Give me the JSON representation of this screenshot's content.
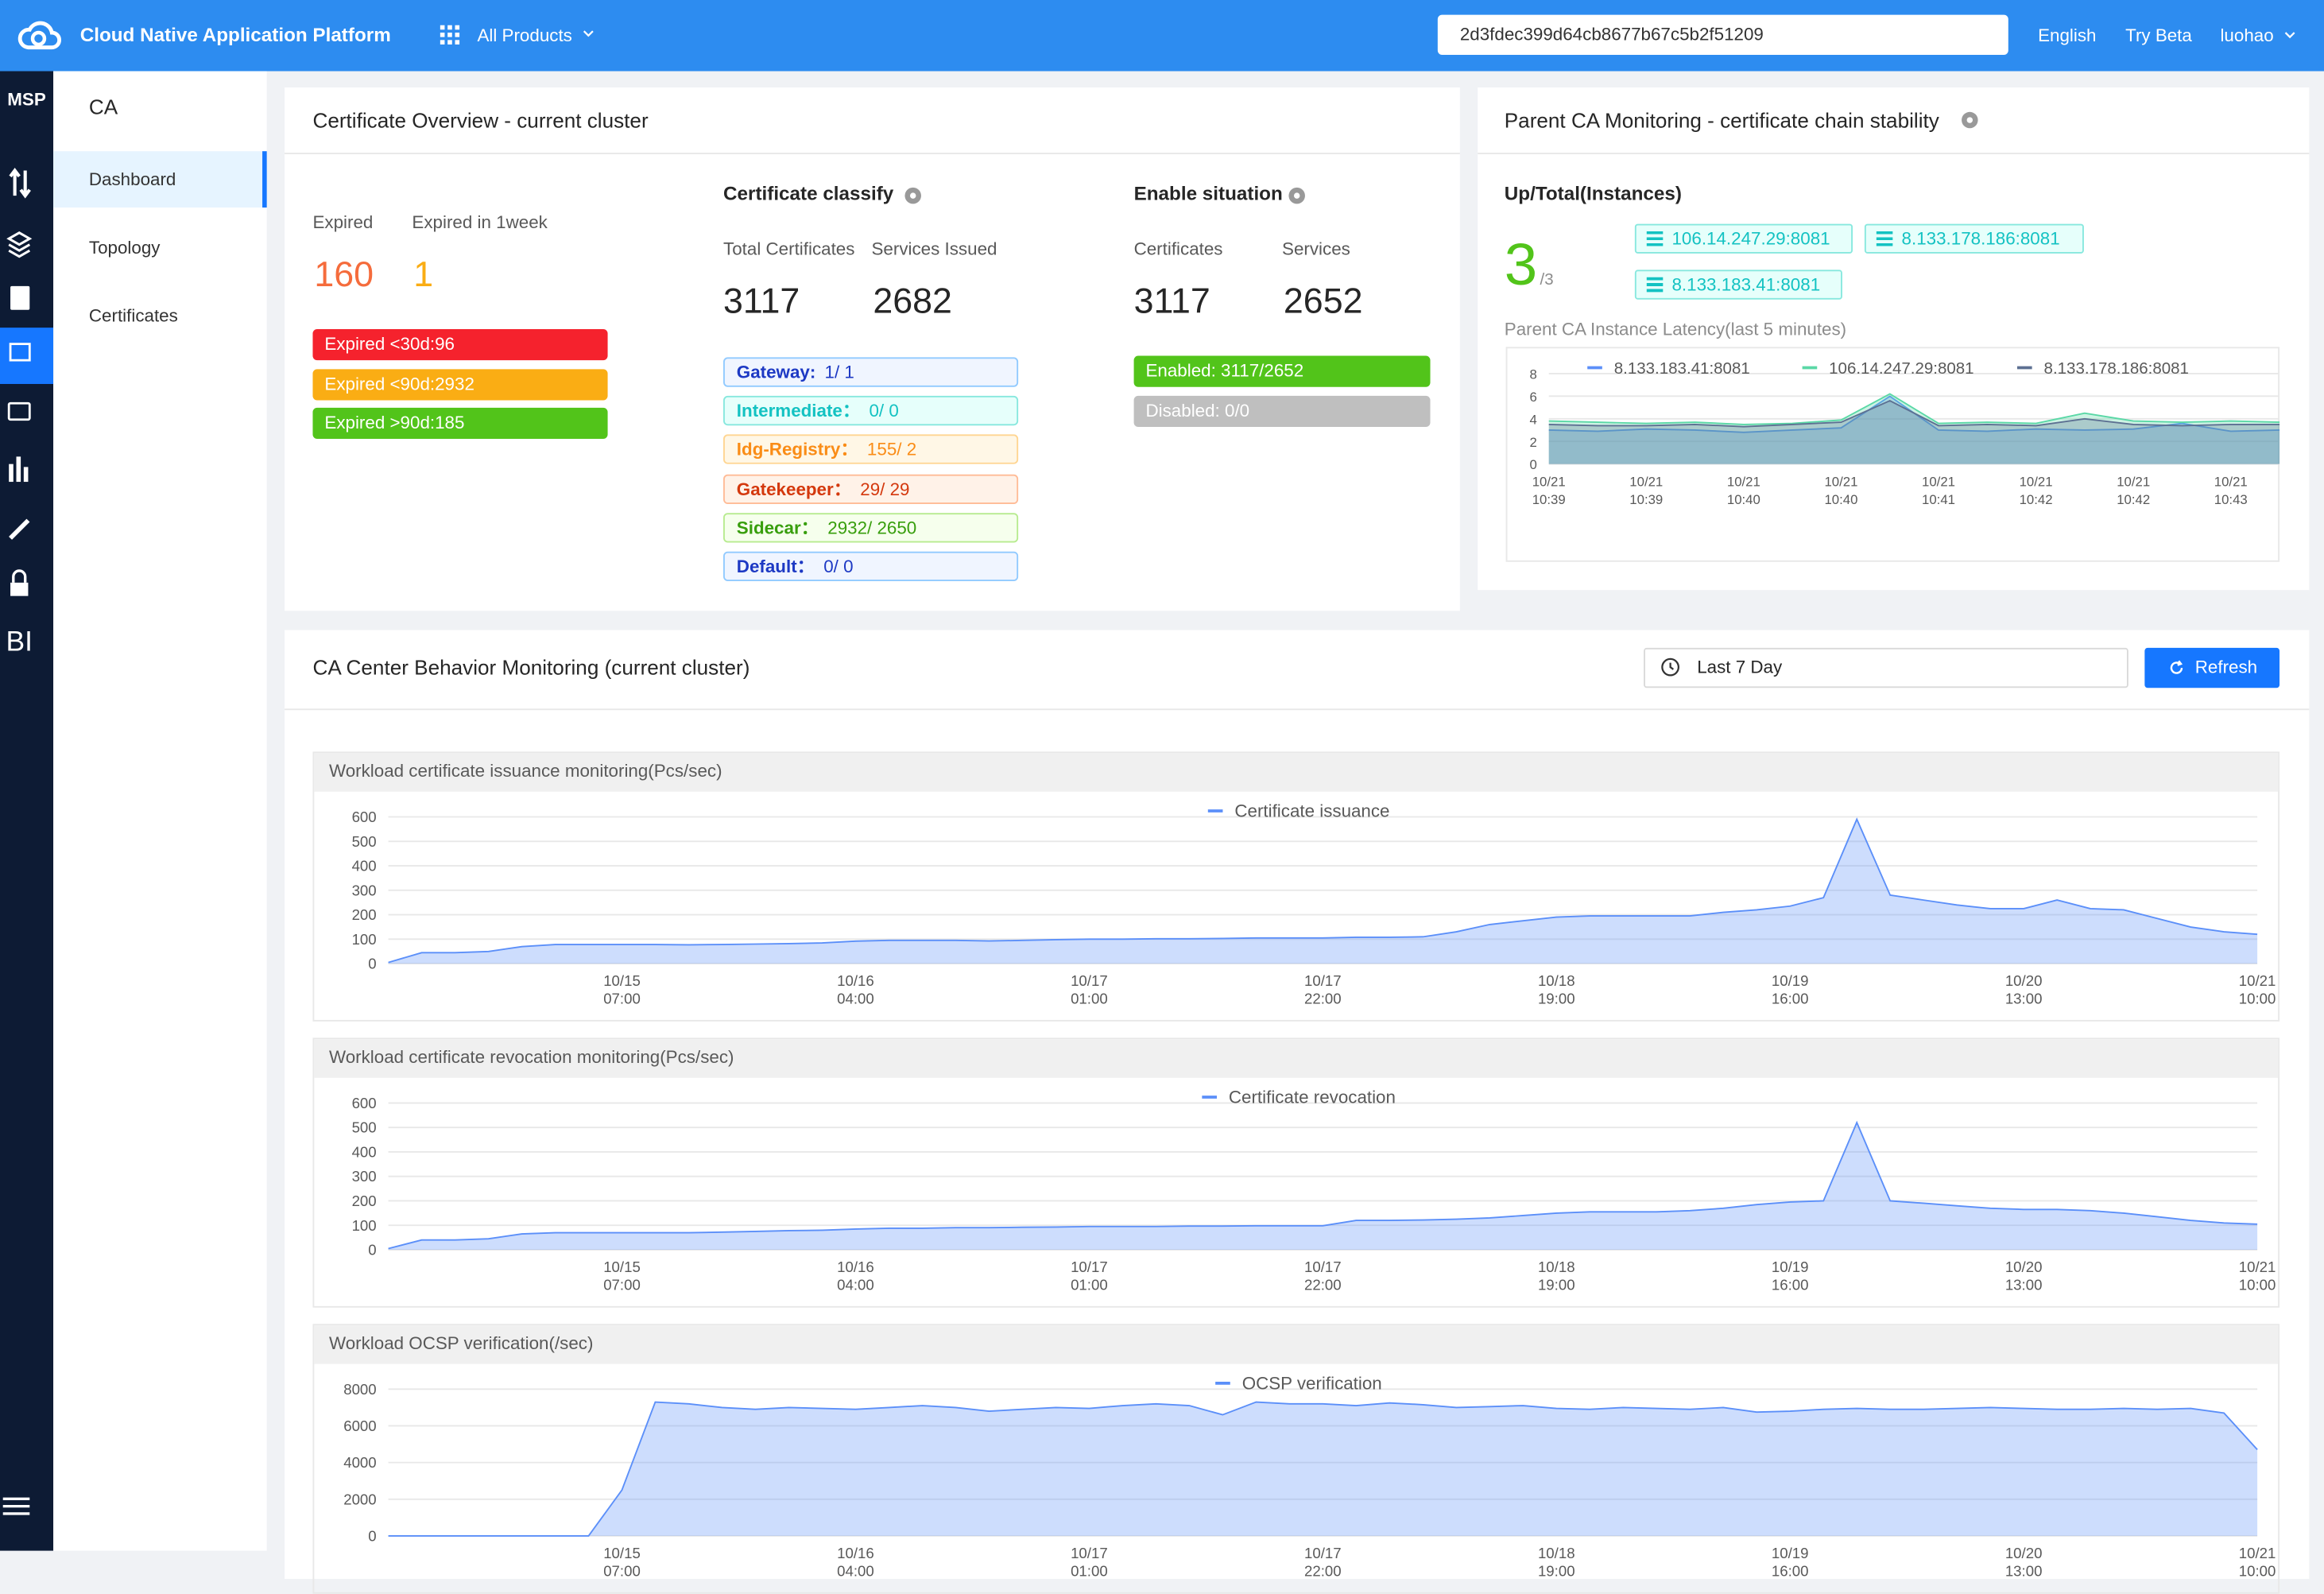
{
  "header": {
    "brand": "Cloud Native Application Platform",
    "products": "All Products",
    "search": "2d3fdec399d64cb8677b67c5b2f51209",
    "links": [
      "English",
      "Try Beta",
      "luohao"
    ]
  },
  "sidebar": {
    "title": "MSP",
    "bi": "BI"
  },
  "nav": {
    "title": "CA",
    "items": [
      "Dashboard",
      "Topology",
      "Certificates"
    ]
  },
  "overview": {
    "title": "Certificate Overview - current cluster",
    "expired": {
      "label": "Expired",
      "value": 160
    },
    "expired_week": {
      "label": "Expired in 1week",
      "value": 1
    },
    "badges": [
      "Expired <30d:96",
      "Expired <90d:2932",
      "Expired >90d:185"
    ],
    "classify": {
      "title": "Certificate classify",
      "total_label": "Total Certificates",
      "total": 3117,
      "services_label": "Services Issued",
      "services": 2682,
      "tags": [
        {
          "label": "Gateway:",
          "value": "1/ 1"
        },
        {
          "label": "Intermediate：",
          "value": "0/ 0"
        },
        {
          "label": "Idg-Registry：",
          "value": "155/ 2"
        },
        {
          "label": "Gatekeeper：",
          "value": "29/ 29"
        },
        {
          "label": "Sidecar：",
          "value": "2932/ 2650"
        },
        {
          "label": "Default：",
          "value": "0/ 0"
        }
      ]
    },
    "enable": {
      "title": "Enable situation",
      "cert_label": "Certificates",
      "cert": 3117,
      "services_label": "Services",
      "services": 2652,
      "enabled": "Enabled: 3117/2652",
      "disabled": "Disabled: 0/0"
    }
  },
  "parent_ca": {
    "title": "Parent CA Monitoring - certificate chain stability",
    "up_total_label": "Up/Total(Instances)",
    "up": 3,
    "total_label": "/3",
    "instances": [
      "106.14.247.29:8081",
      "8.133.178.186:8081",
      "8.133.183.41:8081"
    ],
    "latency_chart": {
      "type": "line",
      "title": "Parent CA Instance Latency(last 5 minutes)",
      "categories": [
        [
          "10/21",
          "10:39"
        ],
        null,
        [
          "10/21",
          "10:39"
        ],
        null,
        [
          "10/21",
          "10:40"
        ],
        null,
        [
          "10/21",
          "10:40"
        ],
        null,
        [
          "10/21",
          "10:41"
        ],
        null,
        [
          "10/21",
          "10:42"
        ],
        null,
        [
          "10/21",
          "10:42"
        ],
        null,
        [
          "10/21",
          "10:43"
        ],
        null
      ],
      "series": [
        {
          "name": "8.133.183.41:8081",
          "color": "#5b8ff9",
          "values": [
            3.0,
            2.9,
            3.1,
            3.0,
            2.8,
            3.0,
            3.2,
            6.0,
            3.0,
            2.9,
            3.1,
            3.0,
            3.1,
            3.6,
            2.9,
            3.0
          ]
        },
        {
          "name": "106.14.247.29:8081",
          "color": "#5ad8a6",
          "values": [
            3.8,
            3.7,
            3.6,
            3.7,
            3.5,
            3.6,
            3.9,
            6.2,
            3.6,
            3.7,
            3.6,
            4.5,
            3.8,
            3.7,
            3.8,
            3.7
          ]
        },
        {
          "name": "8.133.178.186:8081",
          "color": "#5d7092",
          "values": [
            3.5,
            3.4,
            3.4,
            3.5,
            3.3,
            3.5,
            3.7,
            5.6,
            3.4,
            3.5,
            3.4,
            4.0,
            3.5,
            3.4,
            3.5,
            3.5
          ]
        }
      ],
      "ylim": [
        0,
        8
      ],
      "yticks": [
        0,
        2,
        4,
        6,
        8
      ]
    }
  },
  "behavior": {
    "title": "CA Center Behavior Monitoring (current cluster)",
    "range": "Last 7 Day",
    "refresh": "Refresh",
    "charts": [
      {
        "type": "line",
        "title": "Workload certificate issuance monitoring(Pcs/sec)",
        "categories": [
          null,
          null,
          null,
          null,
          null,
          null,
          null,
          [
            "10/15",
            "07:00"
          ],
          null,
          null,
          null,
          null,
          null,
          null,
          [
            "10/16",
            "04:00"
          ],
          null,
          null,
          null,
          null,
          null,
          null,
          [
            "10/17",
            "01:00"
          ],
          null,
          null,
          null,
          null,
          null,
          null,
          [
            "10/17",
            "22:00"
          ],
          null,
          null,
          null,
          null,
          null,
          null,
          [
            "10/18",
            "19:00"
          ],
          null,
          null,
          null,
          null,
          null,
          null,
          [
            "10/19",
            "16:00"
          ],
          null,
          null,
          null,
          null,
          null,
          null,
          [
            "10/20",
            "13:00"
          ],
          null,
          null,
          null,
          null,
          null,
          null,
          [
            "10/21",
            "10:00"
          ]
        ],
        "series": [
          {
            "name": "Certificate issuance",
            "color": "#5b8ff9",
            "values": [
              5,
              45,
              45,
              50,
              70,
              78,
              78,
              78,
              78,
              77,
              78,
              80,
              82,
              85,
              92,
              95,
              95,
              95,
              93,
              95,
              98,
              100,
              100,
              102,
              102,
              103,
              105,
              105,
              105,
              108,
              108,
              110,
              130,
              160,
              175,
              190,
              195,
              195,
              195,
              195,
              210,
              220,
              235,
              270,
              590,
              280,
              260,
              240,
              225,
              225,
              260,
              225,
              220,
              185,
              150,
              130,
              120
            ]
          }
        ],
        "ylim": [
          0,
          600
        ],
        "yticks": [
          0,
          100,
          200,
          300,
          400,
          500,
          600
        ]
      },
      {
        "type": "line",
        "title": "Workload certificate revocation monitoring(Pcs/sec)",
        "categories": [
          null,
          null,
          null,
          null,
          null,
          null,
          null,
          [
            "10/15",
            "07:00"
          ],
          null,
          null,
          null,
          null,
          null,
          null,
          [
            "10/16",
            "04:00"
          ],
          null,
          null,
          null,
          null,
          null,
          null,
          [
            "10/17",
            "01:00"
          ],
          null,
          null,
          null,
          null,
          null,
          null,
          [
            "10/17",
            "22:00"
          ],
          null,
          null,
          null,
          null,
          null,
          null,
          [
            "10/18",
            "19:00"
          ],
          null,
          null,
          null,
          null,
          null,
          null,
          [
            "10/19",
            "16:00"
          ],
          null,
          null,
          null,
          null,
          null,
          null,
          [
            "10/20",
            "13:00"
          ],
          null,
          null,
          null,
          null,
          null,
          null,
          [
            "10/21",
            "10:00"
          ]
        ],
        "series": [
          {
            "name": "Certificate revocation",
            "color": "#5b8ff9",
            "values": [
              5,
              40,
              40,
              45,
              65,
              70,
              70,
              70,
              70,
              70,
              72,
              75,
              78,
              80,
              85,
              88,
              88,
              90,
              90,
              92,
              93,
              95,
              95,
              95,
              97,
              97,
              98,
              98,
              98,
              120,
              120,
              122,
              125,
              130,
              140,
              150,
              155,
              155,
              155,
              160,
              170,
              185,
              195,
              200,
              520,
              200,
              190,
              180,
              170,
              165,
              165,
              160,
              150,
              135,
              120,
              110,
              105
            ]
          }
        ],
        "ylim": [
          0,
          600
        ],
        "yticks": [
          0,
          100,
          200,
          300,
          400,
          500,
          600
        ]
      },
      {
        "type": "line",
        "title": "Workload OCSP verification(/sec)",
        "categories": [
          null,
          null,
          null,
          null,
          null,
          null,
          null,
          [
            "10/15",
            "07:00"
          ],
          null,
          null,
          null,
          null,
          null,
          null,
          [
            "10/16",
            "04:00"
          ],
          null,
          null,
          null,
          null,
          null,
          null,
          [
            "10/17",
            "01:00"
          ],
          null,
          null,
          null,
          null,
          null,
          null,
          [
            "10/17",
            "22:00"
          ],
          null,
          null,
          null,
          null,
          null,
          null,
          [
            "10/18",
            "19:00"
          ],
          null,
          null,
          null,
          null,
          null,
          null,
          [
            "10/19",
            "16:00"
          ],
          null,
          null,
          null,
          null,
          null,
          null,
          [
            "10/20",
            "13:00"
          ],
          null,
          null,
          null,
          null,
          null,
          null,
          [
            "10/21",
            "10:00"
          ]
        ],
        "series": [
          {
            "name": "OCSP verification",
            "color": "#5b8ff9",
            "values": [
              0,
              0,
              0,
              0,
              0,
              0,
              0,
              2500,
              7300,
              7200,
              7000,
              6900,
              7000,
              6950,
              6900,
              7000,
              7100,
              7000,
              6800,
              6900,
              7000,
              6950,
              7100,
              7200,
              7100,
              6600,
              7300,
              7200,
              7200,
              7100,
              7250,
              7150,
              7000,
              7050,
              7100,
              6950,
              6900,
              7000,
              6950,
              6900,
              7000,
              6750,
              6800,
              6900,
              6950,
              6900,
              6900,
              6950,
              7000,
              6950,
              6900,
              6900,
              6950,
              6900,
              6950,
              6700,
              4700
            ]
          }
        ],
        "ylim": [
          0,
          8000
        ],
        "yticks": [
          0,
          2000,
          4000,
          6000,
          8000
        ]
      }
    ]
  }
}
